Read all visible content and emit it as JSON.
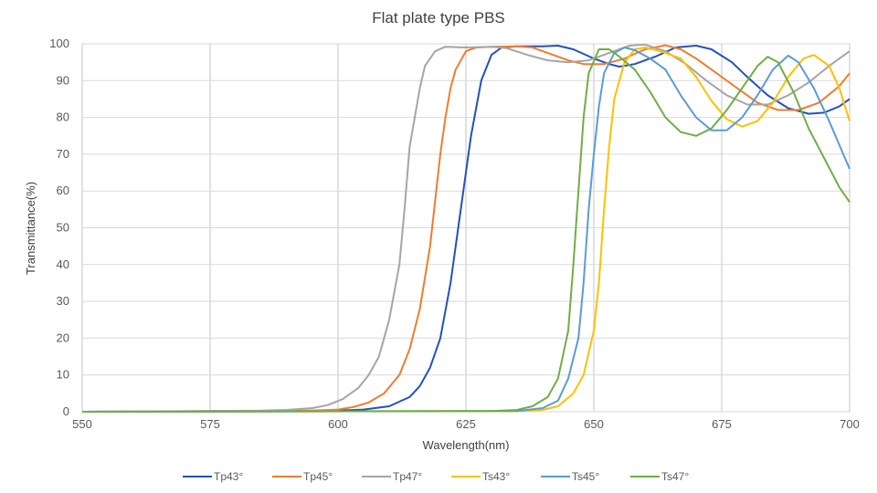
{
  "chart_data": {
    "type": "line",
    "title": "Flat plate type PBS",
    "xlabel": "Wavelength(nm)",
    "ylabel": "Transmittance(%)",
    "xlim": [
      550,
      700
    ],
    "ylim": [
      0,
      100
    ],
    "xticks": [
      550,
      575,
      600,
      625,
      650,
      675,
      700
    ],
    "yticks": [
      0,
      10,
      20,
      30,
      40,
      50,
      60,
      70,
      80,
      90,
      100
    ],
    "grid": true,
    "legend": "bottom",
    "series": [
      {
        "name": "Tp43°",
        "color": "#2450b8",
        "points": [
          [
            550,
            0
          ],
          [
            600,
            0.3
          ],
          [
            605,
            0.6
          ],
          [
            610,
            1.5
          ],
          [
            614,
            4
          ],
          [
            616,
            7
          ],
          [
            618,
            12
          ],
          [
            620,
            20
          ],
          [
            622,
            35
          ],
          [
            624,
            55
          ],
          [
            626,
            75
          ],
          [
            628,
            90
          ],
          [
            630,
            97
          ],
          [
            632,
            99
          ],
          [
            635,
            99.3
          ],
          [
            640,
            99.3
          ],
          [
            643,
            99.5
          ],
          [
            646,
            98.5
          ],
          [
            650,
            96
          ],
          [
            653,
            94.5
          ],
          [
            655,
            93.8
          ],
          [
            658,
            94.5
          ],
          [
            662,
            96.5
          ],
          [
            666,
            99
          ],
          [
            670,
            99.5
          ],
          [
            673,
            98.5
          ],
          [
            677,
            95
          ],
          [
            680,
            91
          ],
          [
            684,
            86
          ],
          [
            688,
            82.5
          ],
          [
            692,
            81
          ],
          [
            695,
            81.3
          ],
          [
            698,
            83
          ],
          [
            700,
            85
          ]
        ]
      },
      {
        "name": "Tp45°",
        "color": "#ed7d31",
        "points": [
          [
            550,
            0
          ],
          [
            595,
            0.3
          ],
          [
            600,
            0.6
          ],
          [
            603,
            1.3
          ],
          [
            606,
            2.5
          ],
          [
            609,
            5
          ],
          [
            612,
            10
          ],
          [
            614,
            17
          ],
          [
            616,
            28
          ],
          [
            618,
            45
          ],
          [
            620,
            70
          ],
          [
            621,
            80
          ],
          [
            622,
            88
          ],
          [
            623,
            93
          ],
          [
            625,
            98
          ],
          [
            627,
            99
          ],
          [
            630,
            99.2
          ],
          [
            635,
            99.3
          ],
          [
            638,
            99
          ],
          [
            641,
            97.5
          ],
          [
            645,
            95.5
          ],
          [
            648,
            94.5
          ],
          [
            652,
            94.5
          ],
          [
            656,
            96
          ],
          [
            660,
            98.5
          ],
          [
            664,
            99.6
          ],
          [
            667,
            98.5
          ],
          [
            670,
            96
          ],
          [
            674,
            92
          ],
          [
            678,
            88
          ],
          [
            682,
            84
          ],
          [
            686,
            82
          ],
          [
            690,
            82
          ],
          [
            694,
            84
          ],
          [
            698,
            88.5
          ],
          [
            700,
            92
          ]
        ]
      },
      {
        "name": "Tp47°",
        "color": "#a5a5a5",
        "points": [
          [
            550,
            0
          ],
          [
            585,
            0.3
          ],
          [
            590,
            0.5
          ],
          [
            595,
            1
          ],
          [
            598,
            1.8
          ],
          [
            601,
            3.5
          ],
          [
            604,
            6.5
          ],
          [
            606,
            10
          ],
          [
            608,
            15
          ],
          [
            610,
            25
          ],
          [
            612,
            40
          ],
          [
            613,
            55
          ],
          [
            614,
            72
          ],
          [
            616,
            88
          ],
          [
            617,
            94
          ],
          [
            619,
            98
          ],
          [
            621,
            99.2
          ],
          [
            625,
            99
          ],
          [
            630,
            99.2
          ],
          [
            633,
            98.8
          ],
          [
            637,
            97
          ],
          [
            641,
            95.5
          ],
          [
            645,
            95
          ],
          [
            649,
            95.5
          ],
          [
            653,
            97.5
          ],
          [
            657,
            99.5
          ],
          [
            660,
            99.8
          ],
          [
            664,
            98
          ],
          [
            668,
            94.5
          ],
          [
            672,
            90
          ],
          [
            676,
            86
          ],
          [
            680,
            83.5
          ],
          [
            684,
            83.5
          ],
          [
            688,
            86
          ],
          [
            692,
            89.5
          ],
          [
            696,
            94
          ],
          [
            700,
            98
          ]
        ]
      },
      {
        "name": "Ts43°",
        "color": "#ffc000",
        "points": [
          [
            550,
            0
          ],
          [
            635,
            0.2
          ],
          [
            640,
            0.5
          ],
          [
            643,
            1.5
          ],
          [
            646,
            5
          ],
          [
            648,
            10
          ],
          [
            650,
            22
          ],
          [
            651,
            35
          ],
          [
            652,
            55
          ],
          [
            653,
            72
          ],
          [
            654,
            85
          ],
          [
            656,
            95
          ],
          [
            658,
            98.5
          ],
          [
            660,
            99
          ],
          [
            663,
            98
          ],
          [
            667,
            96
          ],
          [
            670,
            91
          ],
          [
            673,
            84.5
          ],
          [
            676,
            79.5
          ],
          [
            679,
            77.5
          ],
          [
            682,
            79
          ],
          [
            685,
            84
          ],
          [
            688,
            91
          ],
          [
            691,
            96
          ],
          [
            693,
            97
          ],
          [
            696,
            94
          ],
          [
            698,
            88
          ],
          [
            700,
            79
          ]
        ]
      },
      {
        "name": "Ts45°",
        "color": "#5b9bd5",
        "points": [
          [
            550,
            0
          ],
          [
            635,
            0.2
          ],
          [
            640,
            1
          ],
          [
            643,
            3
          ],
          [
            645,
            9
          ],
          [
            647,
            20
          ],
          [
            648,
            35
          ],
          [
            649,
            55
          ],
          [
            650,
            70
          ],
          [
            651,
            83
          ],
          [
            652,
            92
          ],
          [
            654,
            97.5
          ],
          [
            656,
            99
          ],
          [
            658,
            98.3
          ],
          [
            661,
            96
          ],
          [
            664,
            93
          ],
          [
            667,
            86
          ],
          [
            670,
            80
          ],
          [
            673,
            76.5
          ],
          [
            676,
            76.5
          ],
          [
            679,
            80
          ],
          [
            682,
            86
          ],
          [
            685,
            93
          ],
          [
            688,
            96.8
          ],
          [
            690,
            95
          ],
          [
            693,
            88
          ],
          [
            696,
            79
          ],
          [
            700,
            66
          ]
        ]
      },
      {
        "name": "Ts47°",
        "color": "#70ad47",
        "points": [
          [
            550,
            0
          ],
          [
            630,
            0.2
          ],
          [
            635,
            0.5
          ],
          [
            638,
            1.5
          ],
          [
            641,
            4
          ],
          [
            643,
            9
          ],
          [
            645,
            22
          ],
          [
            646,
            40
          ],
          [
            647,
            60
          ],
          [
            648,
            80
          ],
          [
            649,
            92
          ],
          [
            651,
            98.5
          ],
          [
            653,
            98.5
          ],
          [
            655,
            96.5
          ],
          [
            658,
            93
          ],
          [
            661,
            87
          ],
          [
            664,
            80
          ],
          [
            667,
            76
          ],
          [
            670,
            75
          ],
          [
            673,
            77
          ],
          [
            676,
            82
          ],
          [
            679,
            88
          ],
          [
            682,
            94
          ],
          [
            684,
            96.5
          ],
          [
            686,
            95
          ],
          [
            689,
            87
          ],
          [
            692,
            77
          ],
          [
            695,
            69
          ],
          [
            698,
            61
          ],
          [
            700,
            57
          ]
        ]
      }
    ]
  }
}
